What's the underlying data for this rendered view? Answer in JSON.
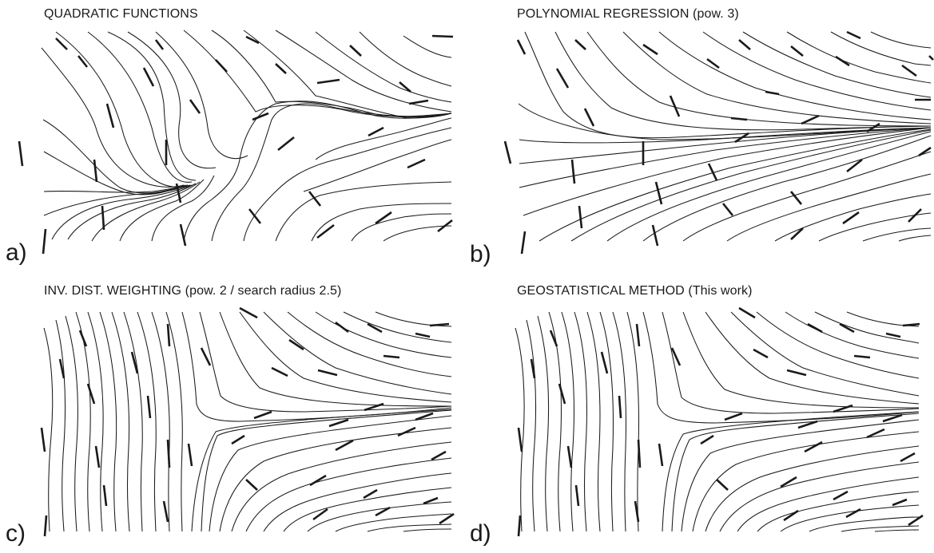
{
  "panels": [
    {
      "id": "a",
      "label": "a)",
      "title": "QUADRATIC FUNCTIONS"
    },
    {
      "id": "b",
      "label": "b)",
      "title": "POLYNOMIAL REGRESSION (pow. 3)"
    },
    {
      "id": "c",
      "label": "c)",
      "title": "INV. DIST. WEIGHTING (pow. 2 / search radius 2.5)"
    },
    {
      "id": "d",
      "label": "d)",
      "title": "GEOSTATISTICAL METHOD (This work)"
    }
  ]
}
